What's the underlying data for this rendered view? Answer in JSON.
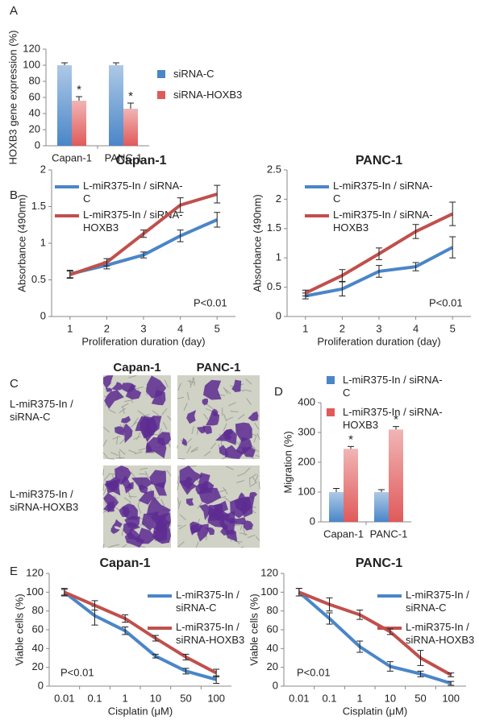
{
  "chart_data": [
    {
      "type": "bar",
      "label": "A",
      "ylabel": "HOXB3 gene expression (%)",
      "categories": [
        "Capan-1",
        "PANC-1"
      ],
      "ylim": [
        0,
        120
      ],
      "yticks": [
        0,
        20,
        40,
        60,
        80,
        100,
        120
      ],
      "series": [
        {
          "name": "siRNA-C",
          "color": "#4a86c8",
          "values": [
            100,
            100
          ],
          "errors": [
            3,
            3
          ]
        },
        {
          "name": "siRNA-HOXB3",
          "color": "#e05a5a",
          "values": [
            56,
            46
          ],
          "errors": [
            5,
            7
          ],
          "significance": [
            "*",
            "*"
          ]
        }
      ]
    },
    {
      "type": "line",
      "label": "B",
      "title": "Capan-1",
      "xlabel": "Proliferation duration (day)",
      "ylabel": "Absorbance (490nm)",
      "annotation": "P<0.01",
      "x": [
        1,
        2,
        3,
        4,
        5
      ],
      "xlim": [
        0.5,
        5.5
      ],
      "xticks": [
        1,
        2,
        3,
        4,
        5
      ],
      "ylim": [
        0,
        2
      ],
      "yticks": [
        0,
        0.5,
        1,
        1.5,
        2
      ],
      "series": [
        {
          "name": "L-miR375-In / siRNA-C",
          "color": "#4a86c8",
          "values": [
            0.58,
            0.7,
            0.84,
            1.1,
            1.32
          ],
          "errors": [
            0.05,
            0.05,
            0.04,
            0.08,
            0.1
          ]
        },
        {
          "name": "L-miR375-In / siRNA-HOXB3",
          "color": "#c0504d",
          "values": [
            0.57,
            0.74,
            1.13,
            1.52,
            1.67
          ],
          "errors": [
            0.05,
            0.05,
            0.05,
            0.1,
            0.12
          ]
        }
      ]
    },
    {
      "type": "line",
      "title": "PANC-1",
      "xlabel": "Proliferation duration (day)",
      "ylabel": "Absorbance (490nm)",
      "annotation": "P<0.01",
      "x": [
        1,
        2,
        3,
        4,
        5
      ],
      "xlim": [
        0.5,
        5.5
      ],
      "xticks": [
        1,
        2,
        3,
        4,
        5
      ],
      "ylim": [
        0,
        2.5
      ],
      "yticks": [
        0,
        0.5,
        1,
        1.5,
        2,
        2.5
      ],
      "series": [
        {
          "name": "L-miR375-In / siRNA-C",
          "color": "#4a86c8",
          "values": [
            0.35,
            0.47,
            0.77,
            0.85,
            1.18
          ],
          "errors": [
            0.05,
            0.12,
            0.1,
            0.07,
            0.18
          ]
        },
        {
          "name": "L-miR375-In / siRNA-HOXB3",
          "color": "#c0504d",
          "values": [
            0.4,
            0.7,
            1.07,
            1.45,
            1.75
          ],
          "errors": [
            0.05,
            0.1,
            0.1,
            0.12,
            0.2
          ]
        }
      ]
    },
    {
      "type": "image-grid",
      "label": "C",
      "columns": [
        "Capan-1",
        "PANC-1"
      ],
      "rows": [
        "L-miR375-In / siRNA-C",
        "L-miR375-In / siRNA-HOXB3"
      ]
    },
    {
      "type": "bar",
      "label": "D",
      "ylabel": "Migration (%)",
      "categories": [
        "Capan-1",
        "PANC-1"
      ],
      "ylim": [
        0,
        400
      ],
      "yticks": [
        0,
        100,
        200,
        300,
        400
      ],
      "series": [
        {
          "name": "L-miR375-In / siRNA-C",
          "color": "#4a86c8",
          "values": [
            100,
            100
          ],
          "errors": [
            12,
            8
          ]
        },
        {
          "name": "L-miR375-In / siRNA-HOXB3",
          "color": "#e05a5a",
          "values": [
            245,
            310
          ],
          "errors": [
            8,
            10
          ],
          "significance": [
            "*",
            "*"
          ]
        }
      ]
    },
    {
      "type": "line",
      "label": "E",
      "title": "Capan-1",
      "xlabel": "Cisplatin (μM)",
      "ylabel": "Viable cells (%)",
      "annotation": "P<0.01",
      "categories": [
        "0.01",
        "0.1",
        "1",
        "10",
        "50",
        "100"
      ],
      "ylim": [
        0,
        120
      ],
      "yticks": [
        0,
        20,
        40,
        60,
        80,
        100,
        120
      ],
      "series": [
        {
          "name": "L-miR375-In / siRNA-C",
          "color": "#4a86c8",
          "values": [
            100,
            75,
            59,
            32,
            16,
            7
          ],
          "errors": [
            4,
            10,
            4,
            2,
            3,
            4
          ]
        },
        {
          "name": "L-miR375-In / siRNA-HOXB3",
          "color": "#c0504d",
          "values": [
            100,
            86,
            72,
            51,
            31,
            14
          ],
          "errors": [
            3,
            5,
            4,
            3,
            3,
            4
          ]
        }
      ]
    },
    {
      "type": "line",
      "title": "PANC-1",
      "xlabel": "Cisplatin (μM)",
      "ylabel": "Viable cells (%)",
      "annotation": "P<0.01",
      "categories": [
        "0.01",
        "0.1",
        "1",
        "10",
        "50",
        "100"
      ],
      "ylim": [
        0,
        120
      ],
      "yticks": [
        0,
        20,
        40,
        60,
        80,
        100,
        120
      ],
      "series": [
        {
          "name": "L-miR375-In / siRNA-C",
          "color": "#4a86c8",
          "values": [
            100,
            72,
            42,
            21,
            13,
            3
          ],
          "errors": [
            4,
            6,
            6,
            5,
            3,
            2
          ]
        },
        {
          "name": "L-miR375-In / siRNA-HOXB3",
          "color": "#c0504d",
          "values": [
            100,
            87,
            76,
            58,
            30,
            12
          ],
          "errors": [
            4,
            7,
            5,
            3,
            8,
            2
          ]
        }
      ]
    }
  ]
}
